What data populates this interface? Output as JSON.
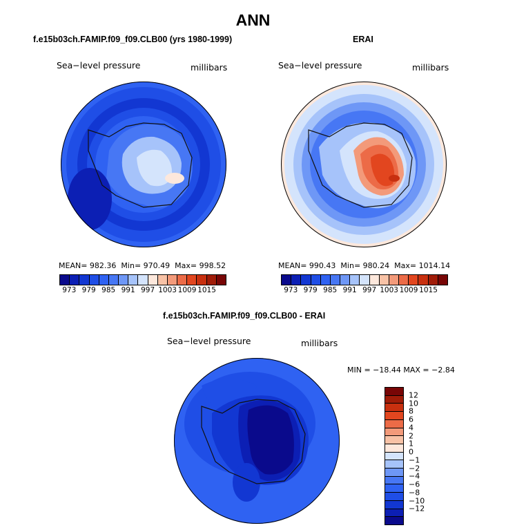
{
  "title": "ANN",
  "panels": {
    "model": {
      "title": "f.e15b03ch.FAMIP.f09_f09.CLB00 (yrs 1980-1999)",
      "variable": "Sea−level pressure",
      "units": "millibars",
      "mean_label": "MEAN=",
      "mean": "982.36",
      "min_label": "Min=",
      "min": "970.49",
      "max_label": "Max=",
      "max": "998.52"
    },
    "obs": {
      "title": "ERAI",
      "variable": "Sea−level pressure",
      "units": "millibars",
      "mean_label": "MEAN=",
      "mean": "990.43",
      "min_label": "Min=",
      "min": "980.24",
      "max_label": "Max=",
      "max": "1014.14"
    },
    "diff": {
      "title": "f.e15b03ch.FAMIP.f09_f09.CLB00 - ERAI",
      "variable": "Sea−level pressure",
      "units": "millibars",
      "minmax_text": "MIN = −18.44  MAX =  −2.84"
    }
  },
  "colors": {
    "abs_bar": [
      "#0a0a8c",
      "#0c1fb4",
      "#1237d2",
      "#1f4ee6",
      "#2f62f2",
      "#4777f4",
      "#6e97f6",
      "#a6c3fa",
      "#d4e4fc",
      "#fde8dc",
      "#f8c2a6",
      "#f39a7a",
      "#ec6b47",
      "#e2461f",
      "#c8300f",
      "#a01c08",
      "#780606"
    ],
    "diff_bar": [
      "#780606",
      "#a01c08",
      "#c8300f",
      "#e2461f",
      "#ec6b47",
      "#f39a7a",
      "#f8c2a6",
      "#fde8dc",
      "#d4e4fc",
      "#a6c3fa",
      "#6e97f6",
      "#4777f4",
      "#2f62f2",
      "#1f4ee6",
      "#1237d2",
      "#0c1fb4",
      "#0a0a8c"
    ]
  },
  "chart_data": [
    {
      "type": "heatmap",
      "projection": "south-polar-stereographic",
      "title": "f.e15b03ch.FAMIP.f09_f09.CLB00 (yrs 1980-1999)",
      "variable": "Sea-level pressure",
      "units": "millibars",
      "mean": 982.36,
      "min": 970.49,
      "max": 998.52,
      "colorbar_ticks": [
        "973",
        "979",
        "985",
        "991",
        "997",
        "1003",
        "1009",
        "1015"
      ]
    },
    {
      "type": "heatmap",
      "projection": "south-polar-stereographic",
      "title": "ERAI",
      "variable": "Sea-level pressure",
      "units": "millibars",
      "mean": 990.43,
      "min": 980.24,
      "max": 1014.14,
      "colorbar_ticks": [
        "973",
        "979",
        "985",
        "991",
        "997",
        "1003",
        "1009",
        "1015"
      ]
    },
    {
      "type": "heatmap",
      "projection": "south-polar-stereographic",
      "title": "f.e15b03ch.FAMIP.f09_f09.CLB00 - ERAI",
      "variable": "Sea-level pressure",
      "units": "millibars",
      "min": -18.44,
      "max": -2.84,
      "colorbar_levels": [
        "12",
        "10",
        "8",
        "6",
        "4",
        "2",
        "1",
        "0",
        "−1",
        "−2",
        "−4",
        "−6",
        "−8",
        "−10",
        "−12"
      ]
    }
  ]
}
